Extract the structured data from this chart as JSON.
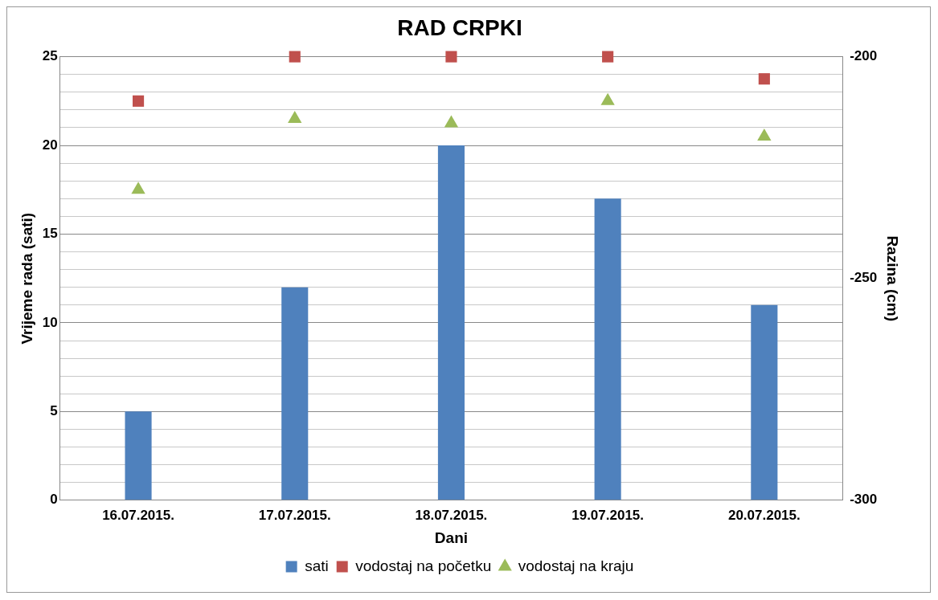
{
  "chart_data": {
    "type": "bar",
    "title": "RAD CRPKI",
    "xlabel": "Dani",
    "ylabel": "Vrijeme rada (sati)",
    "y2label": "Razina (cm)",
    "categories": [
      "16.07.2015.",
      "17.07.2015.",
      "18.07.2015.",
      "19.07.2015.",
      "20.07.2015."
    ],
    "series": [
      {
        "name": "sati",
        "color": "#4f81bd",
        "values": [
          5,
          12,
          20,
          17,
          11
        ]
      },
      {
        "name": "vodostaj na početku",
        "type": "scatter",
        "axis": "y2",
        "marker": "square",
        "color": "#c0504d",
        "x": [
          "16.07.2015.",
          "17.07.2015.",
          "18.07.2015.",
          "19.07.2015.",
          "20.07.2015."
        ],
        "values": [
          -210,
          -200,
          -200,
          -200,
          -205
        ]
      },
      {
        "name": "vodostaj na kraju",
        "type": "scatter",
        "axis": "y2",
        "marker": "triangle",
        "color": "#9bbb59",
        "x": [
          "16.07.2015.",
          "17.07.2015.",
          "18.07.2015.",
          "19.07.2015.",
          "20.07.2015."
        ],
        "values": [
          -230,
          -214,
          -215,
          -210,
          -218
        ]
      }
    ],
    "ylim": [
      0,
      25
    ],
    "yticks": [
      0,
      {
        "value": 1,
        "label": null
      },
      {
        "value": 2,
        "label": null
      },
      {
        "value": 3,
        "label": null
      },
      {
        "value": 4,
        "label": null
      },
      5,
      {
        "value": 6,
        "label": null
      },
      {
        "value": 7,
        "label": null
      },
      {
        "value": 8,
        "label": null
      },
      {
        "value": 9,
        "label": null
      },
      10,
      {
        "value": 11,
        "label": null
      },
      {
        "value": 12,
        "label": null
      },
      {
        "value": 13,
        "label": null
      },
      {
        "value": 14,
        "label": null
      },
      15,
      {
        "value": 16,
        "label": null
      },
      {
        "value": 17,
        "label": null
      },
      {
        "value": 18,
        "label": null
      },
      {
        "value": 19,
        "label": null
      },
      20,
      {
        "value": 21,
        "label": null
      },
      {
        "value": 22,
        "label": null
      },
      {
        "value": 23,
        "label": null
      },
      {
        "value": 24,
        "label": null
      },
      25
    ],
    "y2lim": [
      -300,
      -200
    ],
    "y2ticks": [
      -300,
      -250,
      -200
    ],
    "grid": "y",
    "legend": "bottom"
  }
}
